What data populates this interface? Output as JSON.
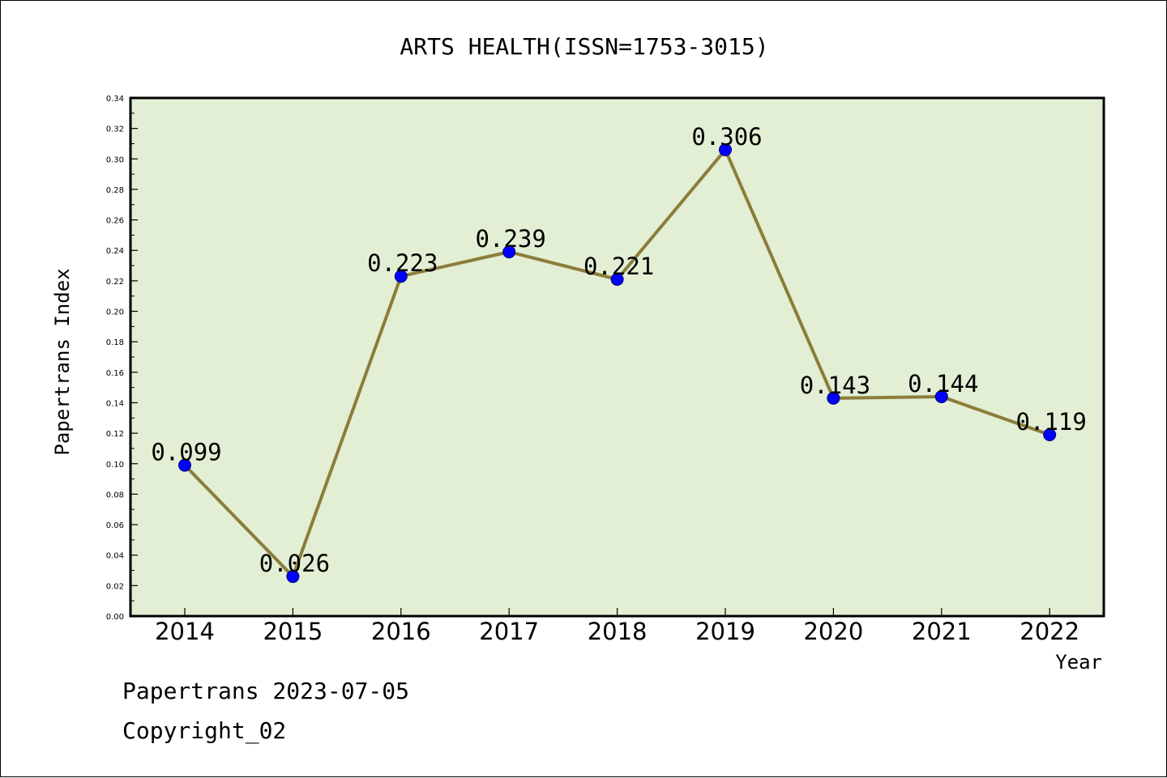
{
  "chart_data": {
    "type": "line",
    "title": "ARTS HEALTH(ISSN=1753-3015)",
    "xlabel": "Year",
    "ylabel": "Papertrans Index",
    "categories": [
      "2014",
      "2015",
      "2016",
      "2017",
      "2018",
      "2019",
      "2020",
      "2021",
      "2022"
    ],
    "values": [
      0.099,
      0.026,
      0.223,
      0.239,
      0.221,
      0.306,
      0.143,
      0.144,
      0.119
    ],
    "data_labels": [
      "0.099",
      "0.026",
      "0.223",
      "0.239",
      "0.221",
      "0.306",
      "0.143",
      "0.144",
      "0.119"
    ],
    "ylim": [
      0,
      0.34
    ],
    "y_ticks": [
      "0.00",
      "0.02",
      "0.04",
      "0.06",
      "0.08",
      "0.10",
      "0.12",
      "0.14",
      "0.16",
      "0.18",
      "0.20",
      "0.22",
      "0.24",
      "0.26",
      "0.28",
      "0.30",
      "0.32",
      "0.34"
    ],
    "grid": false,
    "colors": {
      "plot_background": "#e2efd4",
      "line": "#8b7d3a",
      "marker": "#0000ff",
      "marker_edge": "#00007a"
    }
  },
  "footer": {
    "line1": "Papertrans 2023-07-05",
    "line2": "Copyright_02"
  }
}
